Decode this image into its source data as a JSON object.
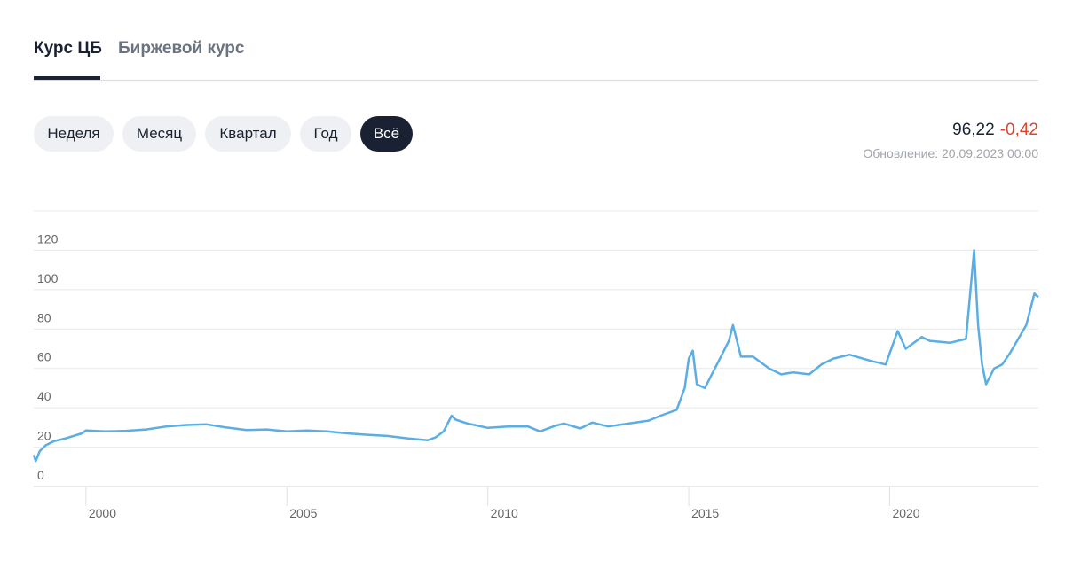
{
  "tabs": [
    "Курс ЦБ",
    "Биржевой курс"
  ],
  "periods": [
    "Неделя",
    "Месяц",
    "Квартал",
    "Год",
    "Всё"
  ],
  "quote": {
    "price": "96,22",
    "change": "-0,42",
    "updated": "Обновление: 20.09.2023 00:00"
  },
  "chart_data": {
    "type": "line",
    "x": [
      1998.7,
      1998.75,
      1998.85,
      1999.0,
      1999.2,
      1999.5,
      1999.9,
      2000.0,
      2000.5,
      2001.0,
      2001.5,
      2002.0,
      2002.5,
      2003.0,
      2003.5,
      2004.0,
      2004.5,
      2005.0,
      2005.5,
      2006.0,
      2006.5,
      2007.0,
      2007.5,
      2008.0,
      2008.5,
      2008.7,
      2008.9,
      2009.1,
      2009.2,
      2009.5,
      2010.0,
      2010.5,
      2011.0,
      2011.3,
      2011.7,
      2011.9,
      2012.3,
      2012.6,
      2013.0,
      2013.5,
      2014.0,
      2014.3,
      2014.7,
      2014.9,
      2015.0,
      2015.1,
      2015.2,
      2015.4,
      2015.6,
      2015.8,
      2016.0,
      2016.1,
      2016.3,
      2016.6,
      2017.0,
      2017.3,
      2017.6,
      2018.0,
      2018.3,
      2018.6,
      2019.0,
      2019.5,
      2019.9,
      2020.2,
      2020.4,
      2020.8,
      2021.0,
      2021.5,
      2021.9,
      2022.1,
      2022.2,
      2022.3,
      2022.4,
      2022.6,
      2022.8,
      2023.0,
      2023.4,
      2023.6,
      2023.7
    ],
    "series": [
      {
        "color": "#5aaee3",
        "values": [
          16,
          13,
          18,
          21,
          23,
          24.5,
          27,
          28.5,
          28,
          28.3,
          29,
          30.5,
          31.3,
          31.6,
          30,
          28.7,
          29,
          28,
          28.5,
          28,
          27,
          26.3,
          25.7,
          24.5,
          23.5,
          25,
          28,
          36,
          34,
          32,
          29.8,
          30.5,
          30.5,
          28,
          31,
          32,
          29.5,
          32.5,
          30.5,
          32,
          33.5,
          36,
          39,
          50,
          65,
          69,
          52,
          50,
          58,
          66,
          74,
          82,
          66,
          66,
          60,
          57,
          58,
          57,
          62,
          65,
          67,
          64,
          62,
          79,
          70,
          76,
          74,
          73,
          75,
          120,
          82,
          62,
          52,
          60,
          62,
          68,
          82,
          98,
          96.22
        ]
      }
    ],
    "xlim": [
      1998.7,
      2023.7
    ],
    "xticks": [
      2000,
      2005,
      2010,
      2015,
      2020
    ],
    "ylim": [
      0,
      140
    ],
    "yticks": [
      0,
      20,
      40,
      60,
      80,
      100,
      120
    ],
    "grid": true
  }
}
